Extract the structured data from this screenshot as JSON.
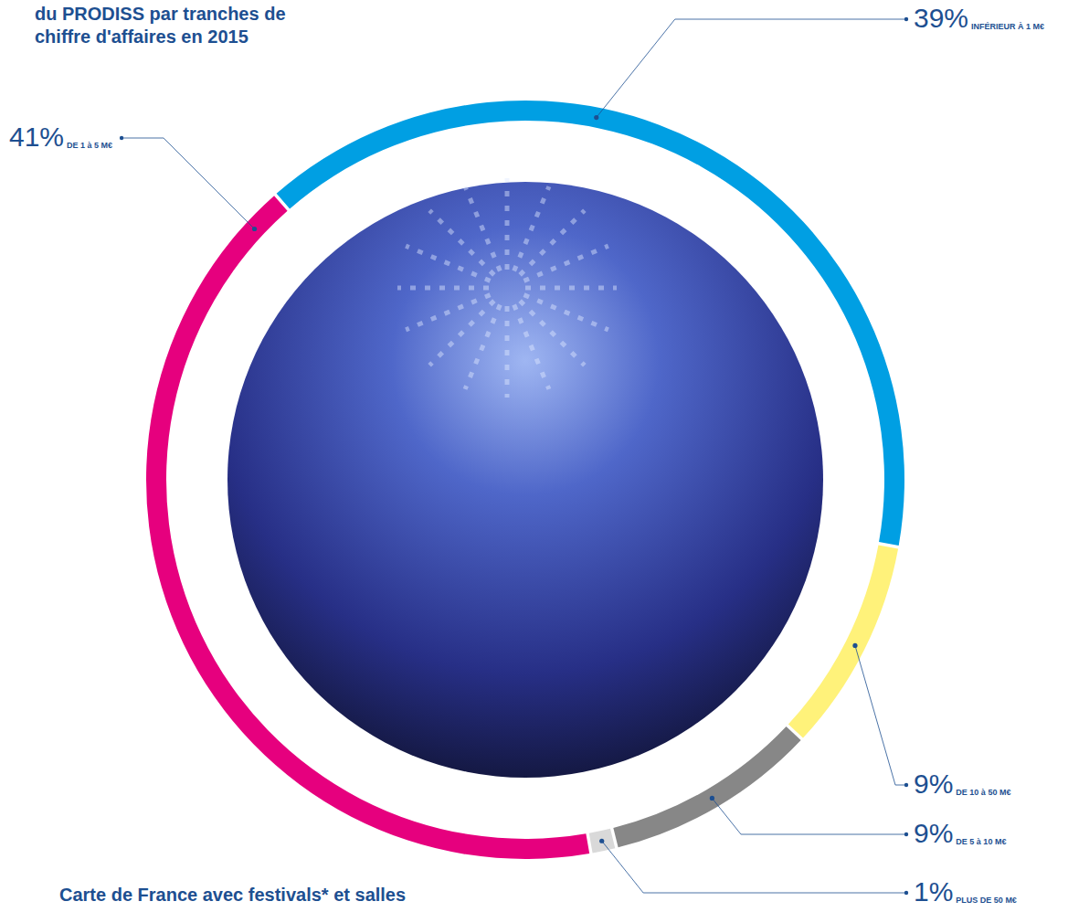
{
  "chart_data": {
    "type": "pie",
    "title": "du PRODISS par tranches de chiffre d'affaires en 2015",
    "categories": [
      "INFÉRIEUR À 1 M€",
      "DE 10 à 50 M€",
      "DE 5 à 10 M€",
      "PLUS DE 50 M€",
      "DE 1 à 5 M€"
    ],
    "values": [
      39,
      9,
      9,
      1,
      41
    ],
    "value_labels": [
      "39%",
      "9%",
      "9%",
      "1%",
      "41%"
    ],
    "colors": [
      "#009fe3",
      "#fff27a",
      "#878787",
      "#d9d9d9",
      "#e6007e"
    ],
    "data_labels": true,
    "annotations": [
      "Carte de France avec festivals* et salles"
    ]
  }
}
